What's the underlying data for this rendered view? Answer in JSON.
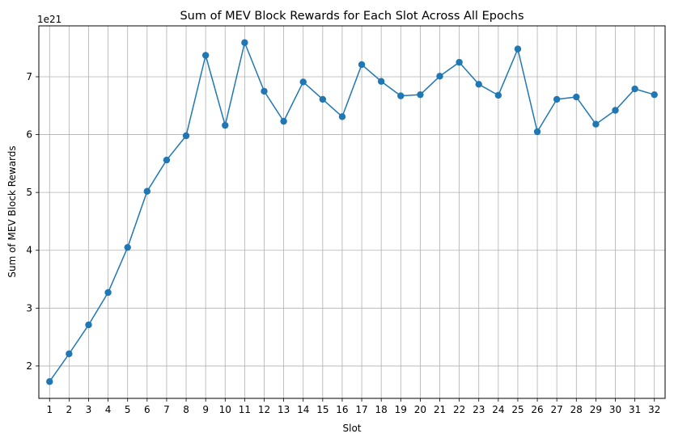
{
  "chart_data": {
    "type": "line",
    "title": "Sum of MEV Block Rewards for Each Slot Across All Epochs",
    "xlabel": "Slot",
    "ylabel": "Sum of MEV Block Rewards",
    "y_offset_text": "1e21",
    "x": [
      1,
      2,
      3,
      4,
      5,
      6,
      7,
      8,
      9,
      10,
      11,
      12,
      13,
      14,
      15,
      16,
      17,
      18,
      19,
      20,
      21,
      22,
      23,
      24,
      25,
      26,
      27,
      28,
      29,
      30,
      31,
      32
    ],
    "series": [
      {
        "values": [
          1.73,
          2.21,
          2.71,
          3.27,
          4.05,
          5.02,
          5.56,
          5.98,
          7.37,
          6.16,
          7.59,
          6.75,
          6.23,
          6.91,
          6.61,
          6.31,
          7.21,
          6.92,
          6.67,
          6.69,
          7.01,
          7.25,
          6.87,
          6.68,
          7.48,
          6.05,
          6.61,
          6.65,
          6.18,
          6.42,
          6.79,
          6.69
        ]
      }
    ],
    "yticks": [
      2,
      3,
      4,
      5,
      6,
      7
    ],
    "ylim": [
      1.44,
      7.88
    ],
    "xlim": [
      0.45,
      32.55
    ],
    "grid": true,
    "line_color": "#1f77b4",
    "marker": "circle"
  }
}
